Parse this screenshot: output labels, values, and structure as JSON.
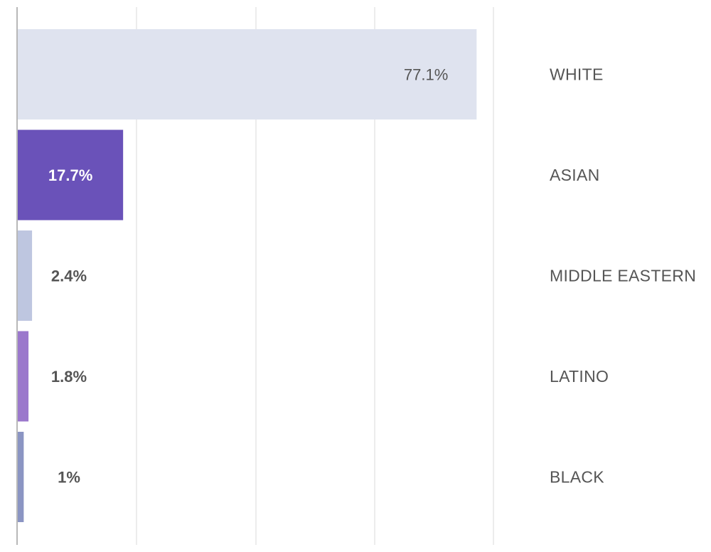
{
  "chart_data": {
    "type": "bar",
    "orientation": "horizontal",
    "categories": [
      "WHITE",
      "ASIAN",
      "MIDDLE EASTERN",
      "LATINO",
      "BLACK"
    ],
    "values": [
      77.1,
      17.7,
      2.4,
      1.8,
      1
    ],
    "value_labels": [
      "77.1%",
      "17.7%",
      "2.4%",
      "1.8%",
      "1%"
    ],
    "colors": [
      "#dfe3ef",
      "#6a52b9",
      "#bec6e0",
      "#9b78cc",
      "#8b95c3"
    ],
    "xlim": [
      0,
      80
    ],
    "grid": true,
    "title": "",
    "xlabel": "",
    "ylabel": ""
  }
}
